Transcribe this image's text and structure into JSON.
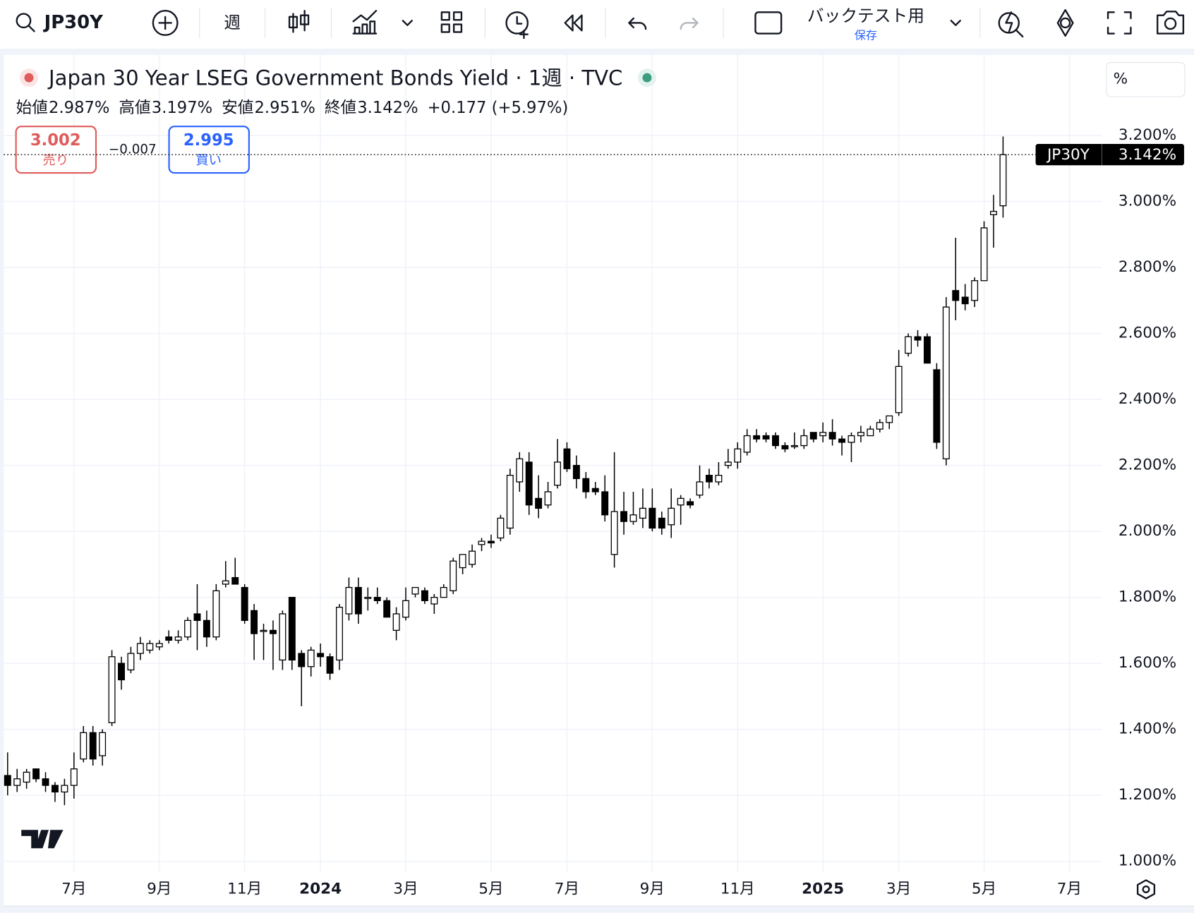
{
  "toolbar": {
    "symbol": "JP30Y",
    "interval": "週",
    "backtest": "バックテスト用",
    "save": "保存"
  },
  "legend": {
    "title": "Japan 30 Year LSEG Government Bonds Yield · 1週 · TVC",
    "items": [
      {
        "label": "始値",
        "value": "2.987%"
      },
      {
        "label": "高値",
        "value": "3.197%"
      },
      {
        "label": "安値",
        "value": "2.951%"
      },
      {
        "label": "終値",
        "value": "3.142%"
      }
    ],
    "change": "+0.177 (+5.97%)"
  },
  "trade": {
    "sell_price": "3.002",
    "sell": "売り",
    "spread": "−0.007",
    "buy_price": "2.995",
    "buy": "買い"
  },
  "price_tag": {
    "symbol": "JP30Y",
    "price": "3.142%"
  },
  "chart_data": {
    "type": "candlestick",
    "axis_unit": "%",
    "categories": [
      null,
      null,
      null,
      null,
      null,
      null,
      null,
      "7月",
      null,
      null,
      null,
      null,
      null,
      null,
      null,
      null,
      "9月",
      null,
      null,
      null,
      null,
      null,
      null,
      null,
      null,
      "11月",
      null,
      null,
      null,
      null,
      null,
      null,
      null,
      "2024",
      null,
      null,
      null,
      null,
      null,
      null,
      null,
      null,
      "3月",
      null,
      null,
      null,
      null,
      null,
      null,
      null,
      null,
      "5月",
      null,
      null,
      null,
      null,
      null,
      null,
      null,
      "7月",
      null,
      null,
      null,
      null,
      null,
      null,
      null,
      null,
      "9月",
      null,
      null,
      null,
      null,
      null,
      null,
      null,
      null,
      "11月",
      null,
      null,
      null,
      null,
      null,
      null,
      null,
      null,
      "2025",
      null,
      null,
      null,
      null,
      null,
      null,
      null,
      "3月",
      null,
      null,
      null,
      null,
      null,
      null,
      null,
      null,
      "5月",
      null,
      null,
      null,
      null,
      null,
      null,
      null,
      null,
      "7月",
      null,
      null,
      null
    ],
    "open": [
      1.26,
      1.23,
      1.24,
      1.28,
      1.25,
      1.23,
      1.21,
      1.23,
      1.31,
      1.39,
      1.32,
      1.42,
      1.6,
      1.58,
      1.63,
      1.64,
      1.65,
      1.68,
      1.67,
      1.68,
      1.75,
      1.73,
      1.68,
      1.84,
      1.86,
      1.83,
      1.76,
      1.7,
      1.7,
      1.61,
      1.8,
      1.63,
      1.59,
      1.63,
      1.62,
      1.61,
      1.75,
      1.83,
      1.8,
      1.8,
      1.79,
      1.7,
      1.74,
      1.81,
      1.82,
      1.78,
      1.8,
      1.82,
      1.89,
      1.9,
      1.96,
      1.97,
      1.98,
      2.01,
      2.15,
      2.21,
      2.1,
      2.08,
      2.14,
      2.25,
      2.2,
      2.16,
      2.13,
      2.12,
      1.93,
      2.06,
      2.03,
      2.04,
      2.07,
      2.04,
      2.02,
      2.08,
      2.09,
      2.11,
      2.17,
      2.15,
      2.2,
      2.21,
      2.24,
      2.29,
      2.29,
      2.29,
      2.26,
      2.26,
      2.26,
      2.3,
      2.29,
      2.3,
      2.28,
      2.27,
      2.29,
      2.29,
      2.31,
      2.33,
      2.36,
      2.54,
      2.59,
      2.59,
      2.49,
      2.22,
      2.73,
      2.71,
      2.7,
      2.76,
      2.96,
      2.987,
      null,
      null,
      null,
      null,
      null,
      null,
      null,
      null,
      null,
      null
    ],
    "high": [
      1.33,
      1.28,
      1.28,
      1.28,
      1.27,
      1.24,
      1.25,
      1.33,
      1.41,
      1.41,
      1.4,
      1.64,
      1.62,
      1.65,
      1.68,
      1.67,
      1.67,
      1.7,
      1.7,
      1.74,
      1.84,
      1.76,
      1.84,
      1.91,
      1.92,
      1.84,
      1.78,
      1.72,
      1.73,
      1.76,
      1.8,
      1.64,
      1.65,
      1.66,
      1.63,
      1.78,
      1.86,
      1.86,
      1.83,
      1.83,
      1.8,
      1.77,
      1.83,
      1.83,
      1.83,
      1.81,
      1.84,
      1.92,
      1.93,
      1.96,
      1.98,
      1.99,
      2.05,
      2.19,
      2.24,
      2.24,
      2.17,
      2.15,
      2.28,
      2.27,
      2.23,
      2.18,
      2.15,
      2.17,
      2.24,
      2.12,
      2.12,
      2.13,
      2.13,
      2.06,
      2.13,
      2.11,
      2.1,
      2.2,
      2.19,
      2.21,
      2.25,
      2.27,
      2.31,
      2.31,
      2.3,
      2.3,
      2.27,
      2.3,
      2.31,
      2.3,
      2.33,
      2.34,
      2.29,
      2.3,
      2.32,
      2.32,
      2.34,
      2.35,
      2.55,
      2.6,
      2.61,
      2.6,
      2.51,
      2.71,
      2.89,
      2.75,
      2.77,
      2.94,
      3.02,
      3.197,
      null,
      null,
      null,
      null,
      null,
      null,
      null,
      null,
      null,
      null
    ],
    "low": [
      1.2,
      1.21,
      1.22,
      1.24,
      1.21,
      1.18,
      1.17,
      1.19,
      1.3,
      1.29,
      1.29,
      1.41,
      1.52,
      1.57,
      1.61,
      1.63,
      1.64,
      1.66,
      1.66,
      1.67,
      1.64,
      1.65,
      1.67,
      1.83,
      1.84,
      1.72,
      1.61,
      1.61,
      1.58,
      1.58,
      1.58,
      1.47,
      1.56,
      1.59,
      1.55,
      1.58,
      1.73,
      1.72,
      1.76,
      1.78,
      1.74,
      1.67,
      1.73,
      1.8,
      1.78,
      1.75,
      1.8,
      1.81,
      1.87,
      1.89,
      1.94,
      1.95,
      1.97,
      1.99,
      2.12,
      2.05,
      2.04,
      2.07,
      2.13,
      2.18,
      2.13,
      2.1,
      2.11,
      2.03,
      1.89,
      1.99,
      2.02,
      2.01,
      2.0,
      1.99,
      1.98,
      2.02,
      2.07,
      2.1,
      2.13,
      2.14,
      2.19,
      2.19,
      2.23,
      2.27,
      2.27,
      2.25,
      2.24,
      2.25,
      2.25,
      2.27,
      2.27,
      2.26,
      2.23,
      2.21,
      2.27,
      2.29,
      2.3,
      2.31,
      2.35,
      2.53,
      2.56,
      2.51,
      2.25,
      2.2,
      2.64,
      2.67,
      2.68,
      2.76,
      2.86,
      2.951,
      null,
      null,
      null,
      null,
      null,
      null,
      null,
      null,
      null,
      null
    ],
    "close": [
      1.23,
      1.25,
      1.27,
      1.25,
      1.23,
      1.21,
      1.23,
      1.28,
      1.39,
      1.31,
      1.39,
      1.62,
      1.55,
      1.63,
      1.66,
      1.66,
      1.66,
      1.67,
      1.68,
      1.73,
      1.73,
      1.68,
      1.82,
      1.85,
      1.84,
      1.73,
      1.69,
      1.7,
      1.69,
      1.75,
      1.61,
      1.59,
      1.64,
      1.62,
      1.57,
      1.77,
      1.83,
      1.75,
      1.8,
      1.79,
      1.74,
      1.75,
      1.79,
      1.83,
      1.79,
      1.8,
      1.83,
      1.91,
      1.93,
      1.94,
      1.97,
      1.965,
      2.04,
      2.17,
      2.22,
      2.08,
      2.07,
      2.12,
      2.21,
      2.19,
      2.16,
      2.12,
      2.12,
      2.05,
      2.06,
      2.03,
      2.05,
      2.07,
      2.01,
      2.01,
      2.07,
      2.1,
      2.08,
      2.15,
      2.15,
      2.17,
      2.21,
      2.25,
      2.29,
      2.28,
      2.28,
      2.26,
      2.25,
      2.26,
      2.29,
      2.28,
      2.3,
      2.28,
      2.27,
      2.29,
      2.3,
      2.31,
      2.33,
      2.35,
      2.5,
      2.59,
      2.58,
      2.51,
      2.27,
      2.68,
      2.7,
      2.69,
      2.76,
      2.92,
      2.97,
      3.142,
      null,
      null,
      null,
      null,
      null,
      null,
      null,
      null,
      null,
      null
    ],
    "up_color": "#ffffff",
    "down_color": "#000000",
    "ylim": [
      0.968,
      3.449
    ],
    "yticks": [
      {
        "value": 1.0,
        "label": "1.000%"
      },
      {
        "value": 1.2,
        "label": "1.200%"
      },
      {
        "value": 1.4,
        "label": "1.400%"
      },
      {
        "value": 1.6,
        "label": "1.600%"
      },
      {
        "value": 1.8,
        "label": "1.800%"
      },
      {
        "value": 2.0,
        "label": "2.000%"
      },
      {
        "value": 2.2,
        "label": "2.200%"
      },
      {
        "value": 2.4,
        "label": "2.400%"
      },
      {
        "value": 2.6,
        "label": "2.600%"
      },
      {
        "value": 2.8,
        "label": "2.800%"
      },
      {
        "value": 3.0,
        "label": "3.000%"
      },
      {
        "value": 3.2,
        "label": "3.200%"
      }
    ],
    "grid": true
  }
}
